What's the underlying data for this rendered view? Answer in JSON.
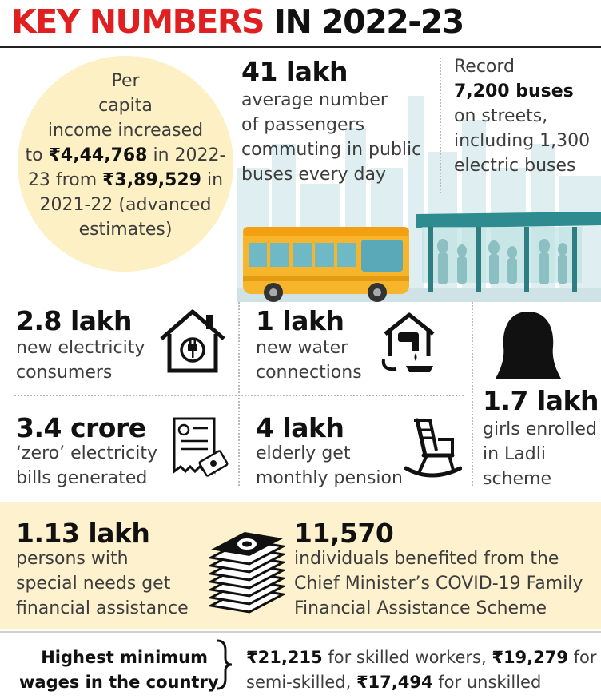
{
  "header": {
    "title_red": "KEY NUMBERS",
    "title_black": "IN 2022-23",
    "accent_color": "#e02020"
  },
  "income": {
    "line1": "Per",
    "line2": "capita",
    "line3": "income increased",
    "line4_pre": "to ",
    "line4_bold": "₹4,44,768",
    "line4_post": " in 2022-",
    "line5_pre": "23 from ",
    "line5_bold": "₹3,89,529",
    "line5_post": " in",
    "line6": "2021-22 (advanced",
    "line7": "estimates)"
  },
  "passengers": {
    "number": "41 lakh",
    "line1": "average number",
    "line2": "of passengers",
    "line3": "commuting in public",
    "line4": "buses every day"
  },
  "buses": {
    "line1": "Record",
    "line2_bold": "7,200 buses",
    "line3": "on streets,",
    "line4": "including 1,300",
    "line5": "electric buses"
  },
  "electricity": {
    "number": "2.8 lakh",
    "line1": "new electricity",
    "line2": "consumers",
    "icon": "house-plug-icon"
  },
  "water": {
    "number": "1 lakh",
    "line1": "new water",
    "line2": "connections",
    "icon": "water-tap-icon"
  },
  "girls": {
    "number": "1.7 lakh",
    "line1": "girls enrolled",
    "line2": "in Ladli",
    "line3": "scheme",
    "icon": "girl-silhouette-icon"
  },
  "zero_bills": {
    "number": "3.4 crore",
    "line1": "‘zero’ electricity",
    "line2": "bills generated",
    "icon": "bill-icon"
  },
  "pension": {
    "number": "4 lakh",
    "line1": "elderly get",
    "line2": "monthly pension",
    "icon": "rocking-chair-icon"
  },
  "special_needs": {
    "number": "1.13 lakh",
    "line1": "persons with",
    "line2": "special needs get",
    "line3": "financial assistance",
    "icon": "money-stack-icon"
  },
  "covid": {
    "number": "11,570",
    "line1": "individuals benefited from the",
    "line2": "Chief Minister’s COVID-19 Family",
    "line3": "Financial Assistance Scheme"
  },
  "wages": {
    "label1": "Highest minimum",
    "label2": "wages in the country",
    "line1_a": "₹21,215",
    "line1_b": " for skilled workers, ",
    "line1_c": "₹19,279",
    "line1_d": " for",
    "line2_a": "semi-skilled, ",
    "line2_b": "₹17,494",
    "line2_c": " for unskilled"
  }
}
